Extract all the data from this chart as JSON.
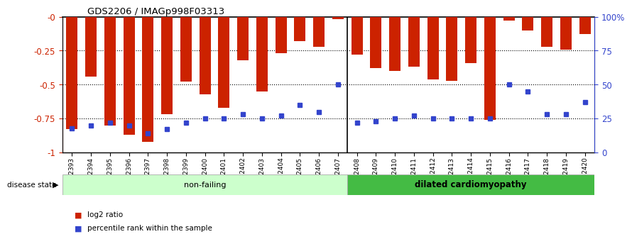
{
  "title": "GDS2206 / IMAGp998F03313",
  "samples": [
    "GSM82393",
    "GSM82394",
    "GSM82395",
    "GSM82396",
    "GSM82397",
    "GSM82398",
    "GSM82399",
    "GSM82400",
    "GSM82401",
    "GSM82402",
    "GSM82403",
    "GSM82404",
    "GSM82405",
    "GSM82406",
    "GSM82407",
    "GSM82408",
    "GSM82409",
    "GSM82410",
    "GSM82411",
    "GSM82412",
    "GSM82413",
    "GSM82414",
    "GSM82415",
    "GSM82416",
    "GSM82417",
    "GSM82418",
    "GSM82419",
    "GSM82420"
  ],
  "log2_ratio": [
    -0.83,
    -0.44,
    -0.8,
    -0.87,
    -0.92,
    -0.72,
    -0.48,
    -0.57,
    -0.67,
    -0.32,
    -0.55,
    -0.27,
    -0.18,
    -0.22,
    -0.02,
    -0.28,
    -0.38,
    -0.4,
    -0.37,
    -0.46,
    -0.47,
    -0.34,
    -0.76,
    -0.03,
    -0.1,
    -0.22,
    -0.24,
    -0.13
  ],
  "percentile_rank": [
    18,
    20,
    22,
    20,
    14,
    17,
    22,
    25,
    25,
    28,
    25,
    27,
    35,
    30,
    50,
    22,
    23,
    25,
    27,
    25,
    25,
    25,
    25,
    50,
    45,
    28,
    28,
    37
  ],
  "non_failing_count": 15,
  "bar_color": "#cc2200",
  "marker_color": "#3344cc",
  "non_failing_bg": "#ccffcc",
  "dilated_bg": "#44bb44",
  "ylim_left": [
    -1.0,
    0.0
  ],
  "yticks_left": [
    0.0,
    -0.25,
    -0.5,
    -0.75,
    -1.0
  ],
  "ytick_labels_left": [
    "-0",
    "-0.25",
    "-0.5",
    "-0.75",
    "-1"
  ],
  "ytick_labels_right": [
    "100%",
    "75",
    "50",
    "25",
    "0"
  ],
  "yticks_right_positions": [
    0.0,
    -0.25,
    -0.5,
    -0.75,
    -1.0
  ],
  "disease_label_nonfailing": "non-failing",
  "disease_label_dilated": "dilated cardiomyopathy",
  "legend_log2": "log2 ratio",
  "legend_pct": "percentile rank within the sample",
  "disease_state_label": "disease state"
}
